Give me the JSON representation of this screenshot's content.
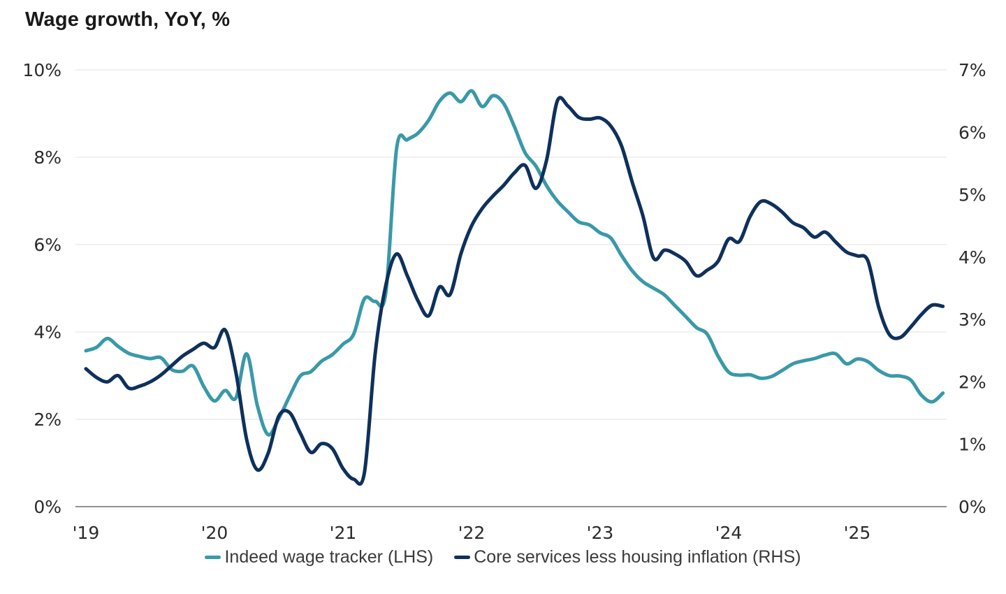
{
  "chart_data": {
    "type": "line",
    "title": "Wage growth, YoY, %",
    "frequency": "monthly",
    "start_month": "2019-01",
    "end_month": "2025-09",
    "x_tick_labels": [
      "'19",
      "'20",
      "'21",
      "'22",
      "'23",
      "'24",
      "'25"
    ],
    "grid": "horizontal-only",
    "legend_position": "bottom-center",
    "background_color": "#ffffff",
    "gridline_color": "#e8e8e8",
    "axis_line_color": "#6e6e6e",
    "axis_text_color": "#2b2b2b",
    "title_color": "#191919",
    "left_axis": {
      "min": 0,
      "max": 10,
      "tick_step": 2,
      "tick_labels": [
        "0%",
        "2%",
        "4%",
        "6%",
        "8%",
        "10%"
      ]
    },
    "right_axis": {
      "min": 0,
      "max": 7,
      "tick_step": 1,
      "tick_labels": [
        "0%",
        "1%",
        "2%",
        "3%",
        "4%",
        "5%",
        "6%",
        "7%"
      ]
    },
    "series": [
      {
        "name": "Indeed wage tracker (LHS)",
        "axis": "left",
        "color": "#3999A8",
        "values": [
          3.57,
          3.65,
          3.85,
          3.67,
          3.51,
          3.44,
          3.39,
          3.41,
          3.14,
          3.1,
          3.22,
          2.75,
          2.42,
          2.66,
          2.49,
          3.5,
          2.32,
          1.65,
          2.02,
          2.52,
          2.99,
          3.09,
          3.33,
          3.48,
          3.72,
          3.95,
          4.76,
          4.7,
          4.9,
          8.2,
          8.4,
          8.55,
          8.85,
          9.28,
          9.47,
          9.27,
          9.52,
          9.16,
          9.41,
          9.23,
          8.7,
          8.1,
          7.8,
          7.35,
          7.0,
          6.75,
          6.52,
          6.45,
          6.27,
          6.15,
          5.75,
          5.4,
          5.15,
          5.0,
          4.85,
          4.6,
          4.35,
          4.1,
          3.95,
          3.45,
          3.08,
          3.01,
          3.02,
          2.94,
          2.98,
          3.12,
          3.27,
          3.34,
          3.39,
          3.47,
          3.5,
          3.27,
          3.38,
          3.32,
          3.12,
          3.0,
          2.99,
          2.9,
          2.55,
          2.4,
          2.6
        ]
      },
      {
        "name": "Core services less housing inflation (RHS)",
        "axis": "right",
        "color": "#0E305C",
        "values": [
          2.21,
          2.07,
          2.0,
          2.1,
          1.9,
          1.93,
          2.0,
          2.11,
          2.26,
          2.41,
          2.52,
          2.62,
          2.55,
          2.83,
          2.15,
          1.08,
          0.59,
          0.85,
          1.45,
          1.51,
          1.18,
          0.87,
          1.01,
          0.93,
          0.61,
          0.44,
          0.55,
          2.45,
          3.55,
          4.05,
          3.7,
          3.3,
          3.06,
          3.52,
          3.4,
          4.05,
          4.5,
          4.78,
          4.98,
          5.15,
          5.35,
          5.47,
          5.1,
          5.55,
          6.5,
          6.42,
          6.24,
          6.21,
          6.23,
          6.1,
          5.78,
          5.2,
          4.66,
          3.98,
          4.11,
          4.05,
          3.93,
          3.7,
          3.79,
          3.93,
          4.29,
          4.25,
          4.65,
          4.89,
          4.85,
          4.72,
          4.55,
          4.47,
          4.32,
          4.4,
          4.24,
          4.08,
          4.02,
          3.94,
          3.2,
          2.76,
          2.71,
          2.88,
          3.08,
          3.23,
          3.21
        ]
      }
    ]
  }
}
